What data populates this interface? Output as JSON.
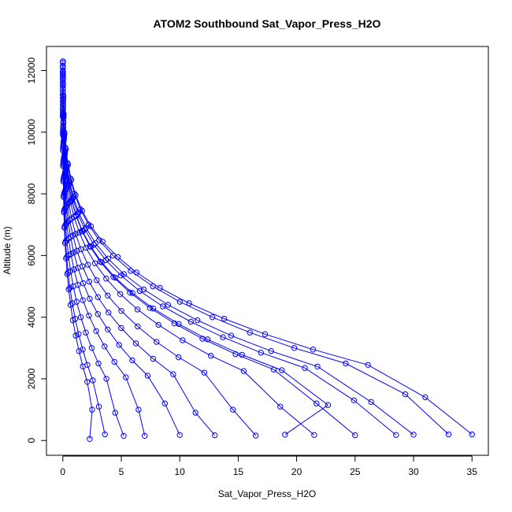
{
  "chart_data": {
    "type": "line",
    "title": "ATOM2 Southbound Sat_Vapor_Press_H2O",
    "xlabel": "Sat_Vapor_Press_H2O",
    "ylabel": "Altitude (m)",
    "xlim": [
      -1.4,
      36.4
    ],
    "ylim": [
      -480,
      12780
    ],
    "xticks": [
      0,
      5,
      10,
      15,
      20,
      25,
      30,
      35
    ],
    "yticks": [
      0,
      2000,
      4000,
      6000,
      8000,
      10000,
      12000
    ],
    "marker": "open-circle",
    "color": "#0000ff",
    "series": [
      {
        "x": [
          0.0,
          0.01,
          0.03,
          0.06,
          0.12,
          0.22,
          0.4,
          0.65,
          1.0,
          1.5,
          2.2,
          3.1,
          4.3,
          5.8,
          7.7,
          10.0,
          12.8,
          16.0,
          19.8,
          24.2,
          29.3,
          33.0
        ],
        "y": [
          12300,
          11900,
          11200,
          10600,
          10000,
          9500,
          9000,
          8500,
          8000,
          7500,
          7000,
          6500,
          6000,
          5500,
          5000,
          4500,
          4000,
          3500,
          3000,
          2500,
          1500,
          200
        ]
      },
      {
        "x": [
          0.0,
          0.01,
          0.03,
          0.07,
          0.14,
          0.25,
          0.45,
          0.72,
          1.1,
          1.65,
          2.4,
          3.4,
          4.7,
          6.3,
          8.3,
          10.8,
          13.8,
          17.3,
          21.4,
          26.1,
          31.0,
          35.0
        ],
        "y": [
          12250,
          11850,
          11150,
          10550,
          9950,
          9450,
          8950,
          8450,
          7950,
          7450,
          6950,
          6450,
          5950,
          5450,
          4950,
          4450,
          3950,
          3450,
          2950,
          2450,
          1400,
          200
        ]
      },
      {
        "x": [
          0.0,
          0.01,
          0.03,
          0.05,
          0.1,
          0.19,
          0.34,
          0.55,
          0.85,
          1.28,
          1.88,
          2.65,
          3.68,
          4.97,
          6.58,
          8.55,
          10.95,
          13.7,
          16.95,
          20.7,
          24.9,
          28.5
        ],
        "y": [
          12100,
          11700,
          11050,
          10450,
          9850,
          9350,
          8850,
          8350,
          7850,
          7350,
          6850,
          6350,
          5850,
          5350,
          4850,
          4350,
          3850,
          3350,
          2850,
          2350,
          1300,
          180
        ]
      },
      {
        "x": [
          0.0,
          0.01,
          0.02,
          0.05,
          0.09,
          0.17,
          0.3,
          0.48,
          0.74,
          1.12,
          1.64,
          2.31,
          3.2,
          4.33,
          5.73,
          7.45,
          9.54,
          11.94,
          14.77,
          18.04,
          21.7,
          25.0
        ],
        "y": [
          12000,
          11600,
          10950,
          10350,
          9800,
          9300,
          8800,
          8300,
          7800,
          7300,
          6800,
          6300,
          5800,
          5300,
          4800,
          4300,
          3800,
          3300,
          2800,
          2300,
          1200,
          170
        ]
      },
      {
        "x": [
          0.0,
          0.01,
          0.02,
          0.04,
          0.08,
          0.14,
          0.26,
          0.41,
          0.64,
          0.96,
          1.41,
          1.98,
          2.75,
          3.71,
          4.91,
          6.39,
          8.18,
          10.24,
          12.66,
          15.47,
          18.6,
          21.5
        ],
        "y": [
          11900,
          11500,
          10900,
          10300,
          9750,
          9250,
          8750,
          8250,
          7750,
          7250,
          6750,
          6250,
          5750,
          5250,
          4750,
          4250,
          3750,
          3250,
          2750,
          2250,
          1100,
          180
        ]
      },
      {
        "x": [
          0.0,
          0.01,
          0.02,
          0.03,
          0.06,
          0.11,
          0.2,
          0.32,
          0.5,
          0.75,
          1.1,
          1.55,
          2.15,
          2.9,
          3.84,
          5.0,
          6.4,
          8.01,
          9.9,
          12.1,
          14.55,
          16.5
        ],
        "y": [
          11800,
          11400,
          10800,
          10200,
          9700,
          9200,
          8700,
          8200,
          7700,
          7200,
          6700,
          6200,
          5700,
          5200,
          4700,
          4200,
          3700,
          3200,
          2700,
          2200,
          1000,
          160
        ]
      },
      {
        "x": [
          0.0,
          0.01,
          0.01,
          0.03,
          0.05,
          0.09,
          0.16,
          0.25,
          0.39,
          0.58,
          0.86,
          1.21,
          1.68,
          2.26,
          3.0,
          3.9,
          4.99,
          6.25,
          7.72,
          9.44,
          11.35,
          13.0
        ],
        "y": [
          11700,
          11300,
          10750,
          10150,
          9650,
          9150,
          8650,
          8150,
          7650,
          7150,
          6650,
          6150,
          5650,
          5150,
          4650,
          4150,
          3650,
          3150,
          2650,
          2150,
          900,
          170
        ]
      },
      {
        "x": [
          0.0,
          0.0,
          0.01,
          0.02,
          0.04,
          0.07,
          0.12,
          0.19,
          0.3,
          0.45,
          0.66,
          0.93,
          1.29,
          1.74,
          2.3,
          3.0,
          3.84,
          4.81,
          5.94,
          7.26,
          8.73,
          10.0
        ],
        "y": [
          11600,
          11200,
          10700,
          10100,
          9600,
          9100,
          8600,
          8100,
          7600,
          7100,
          6600,
          6100,
          5600,
          5100,
          4600,
          4100,
          3600,
          3100,
          2600,
          2100,
          1200,
          180
        ]
      },
      {
        "x": [
          0.0,
          0.0,
          0.01,
          0.02,
          0.03,
          0.05,
          0.09,
          0.14,
          0.22,
          0.33,
          0.49,
          0.69,
          0.96,
          1.29,
          1.71,
          2.23,
          2.85,
          3.57,
          4.41,
          5.39,
          6.48,
          7.0
        ],
        "y": [
          11500,
          11100,
          10650,
          10050,
          9550,
          9050,
          8550,
          8050,
          7550,
          7050,
          6550,
          6050,
          5550,
          5050,
          4550,
          4050,
          3550,
          3050,
          2550,
          2050,
          1000,
          150
        ]
      },
      {
        "x": [
          0.0,
          0.0,
          0.01,
          0.01,
          0.02,
          0.04,
          0.06,
          0.1,
          0.15,
          0.23,
          0.34,
          0.48,
          0.66,
          0.89,
          1.18,
          1.54,
          1.97,
          2.47,
          3.05,
          3.73,
          4.48,
          5.2
        ],
        "y": [
          11400,
          11000,
          10600,
          10000,
          9500,
          9000,
          8500,
          8000,
          7500,
          7000,
          6500,
          6000,
          5500,
          5000,
          4500,
          4000,
          3500,
          3000,
          2500,
          2000,
          900,
          150
        ]
      },
      {
        "x": [
          0.0,
          0.0,
          0.0,
          0.01,
          0.02,
          0.03,
          0.04,
          0.07,
          0.1,
          0.16,
          0.23,
          0.33,
          0.45,
          0.61,
          0.81,
          1.06,
          1.35,
          1.7,
          2.1,
          2.56,
          3.08,
          3.6
        ],
        "y": [
          11300,
          10900,
          10550,
          9950,
          9450,
          8950,
          8450,
          7950,
          7450,
          6950,
          6450,
          5950,
          5450,
          4950,
          4450,
          3950,
          3450,
          2950,
          2450,
          1950,
          1100,
          200
        ]
      },
      {
        "x": [
          0.0,
          0.0,
          0.0,
          0.01,
          0.01,
          0.02,
          0.04,
          0.06,
          0.09,
          0.13,
          0.19,
          0.27,
          0.37,
          0.5,
          0.66,
          0.86,
          1.1,
          1.38,
          1.71,
          2.09,
          2.51,
          2.3
        ],
        "y": [
          11200,
          10800,
          10500,
          9900,
          9400,
          8900,
          8400,
          7900,
          7400,
          6900,
          6400,
          5900,
          5400,
          4900,
          4400,
          3900,
          3400,
          2900,
          2400,
          1900,
          1000,
          50
        ]
      },
      {
        "x": [
          0.0,
          0.01,
          0.03,
          0.06,
          0.11,
          0.2,
          0.36,
          0.58,
          0.9,
          1.35,
          1.98,
          2.79,
          3.87,
          5.22,
          6.93,
          9.0,
          11.52,
          14.4,
          17.82,
          21.78,
          26.37,
          30.0
        ],
        "y": [
          12150,
          11750,
          11100,
          10500,
          9900,
          9400,
          8900,
          8400,
          7900,
          7400,
          6900,
          6400,
          5900,
          5400,
          4900,
          4400,
          3900,
          3400,
          2900,
          2400,
          1250,
          190
        ]
      },
      {
        "x": [
          0.0,
          0.01,
          0.02,
          0.05,
          0.09,
          0.17,
          0.31,
          0.5,
          0.77,
          1.16,
          1.7,
          2.4,
          3.33,
          4.49,
          5.96,
          7.74,
          9.91,
          12.38,
          15.33,
          18.73,
          22.68,
          19.0
        ],
        "y": [
          11950,
          11550,
          10900,
          10300,
          9780,
          9280,
          8780,
          8280,
          7780,
          7280,
          6780,
          6280,
          5780,
          5280,
          4780,
          4280,
          3780,
          3280,
          2780,
          2280,
          1150,
          190
        ]
      }
    ]
  }
}
